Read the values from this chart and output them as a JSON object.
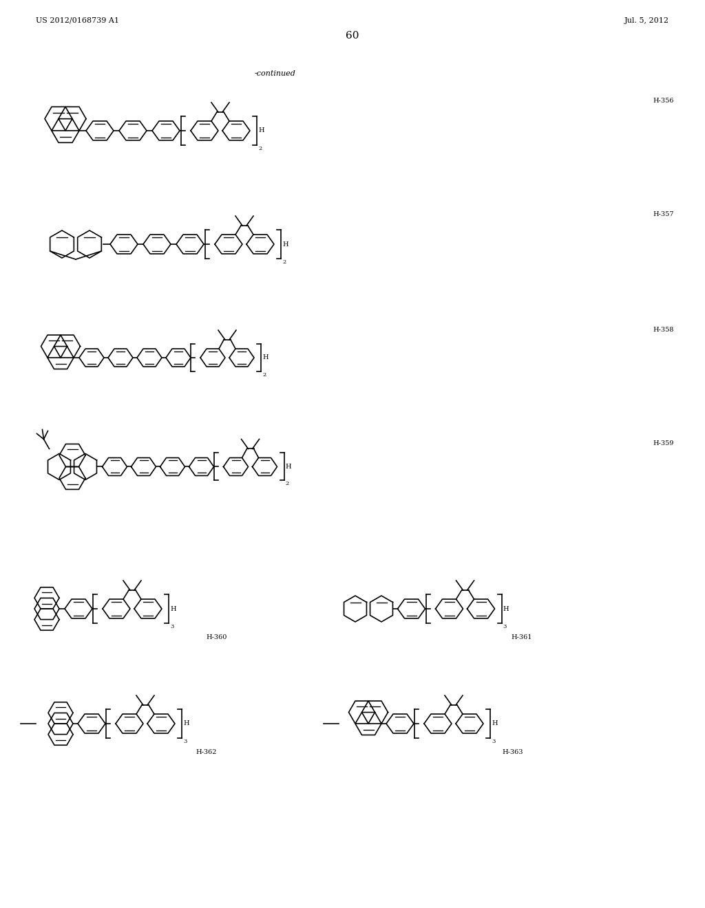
{
  "background_color": "#ffffff",
  "page_number": "60",
  "patent_number": "US 2012/0168739 A1",
  "patent_date": "Jul. 5, 2012",
  "continued_text": "-continued",
  "line_width": 1.2,
  "font_size_label": 7,
  "font_size_header": 8,
  "font_size_page": 11
}
